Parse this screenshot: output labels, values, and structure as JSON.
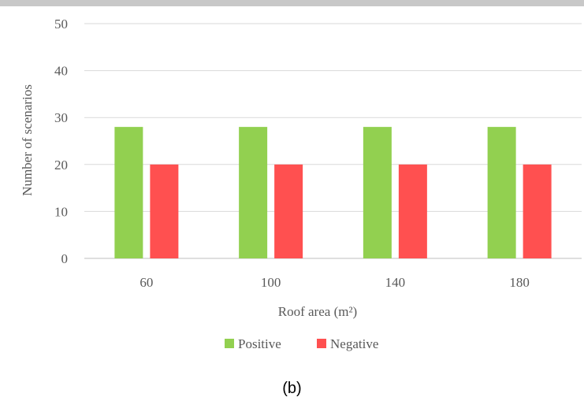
{
  "caption": "(b)",
  "chart_data": {
    "type": "bar",
    "categories": [
      "60",
      "100",
      "140",
      "180"
    ],
    "series": [
      {
        "name": "Positive",
        "values": [
          28,
          28,
          28,
          28
        ],
        "color": "#92d050"
      },
      {
        "name": "Negative",
        "values": [
          20,
          20,
          20,
          20
        ],
        "color": "#ff5050"
      }
    ],
    "xlabel": "Roof area (m²)",
    "ylabel": "Number of scenarios",
    "ylim": [
      0,
      50
    ],
    "yticks": [
      0,
      10,
      20,
      30,
      40,
      50
    ],
    "grid": true,
    "legend_position": "bottom"
  }
}
